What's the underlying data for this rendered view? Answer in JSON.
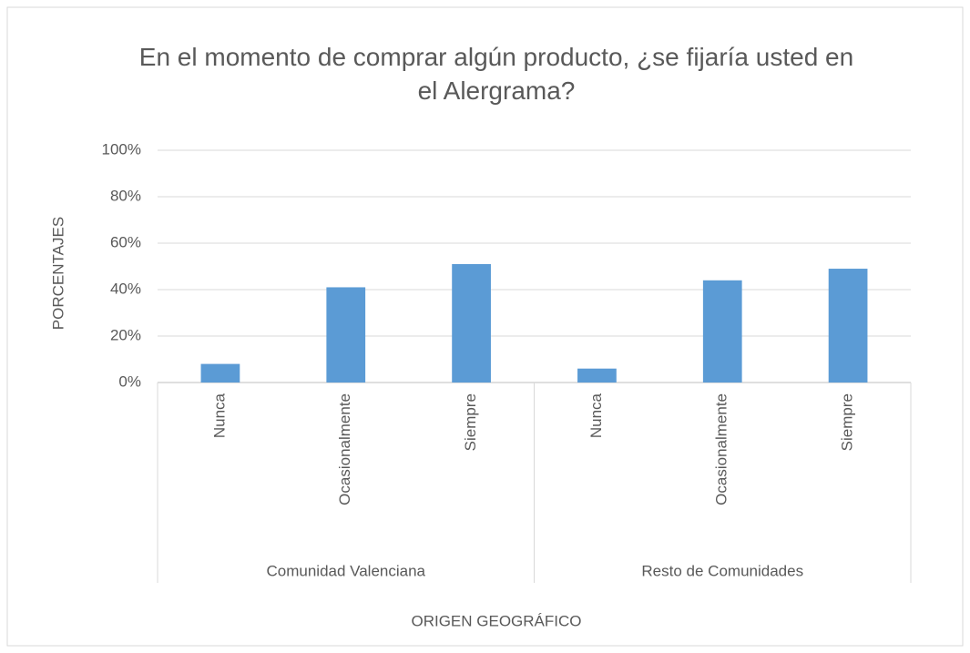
{
  "chart_data": {
    "type": "bar",
    "title": "En el momento de comprar algún producto, ¿se fijaría usted en el Alergrama?",
    "x_label": "ORIGEN GEOGRÁFICO",
    "y_label": "PORCENTAJES",
    "color": "#5b9bd5",
    "groups": [
      {
        "name": "Comunidad Valenciana",
        "categories": [
          "Nunca",
          "Ocasionalmente",
          "Siempre"
        ],
        "values": [
          8,
          41,
          51
        ]
      },
      {
        "name": "Resto de Comunidades",
        "categories": [
          "Nunca",
          "Ocasionalmente",
          "Siempre"
        ],
        "values": [
          6,
          44,
          49
        ]
      }
    ],
    "ylim": [
      0,
      100
    ],
    "yticks": [
      {
        "value": 0,
        "label": "0%"
      },
      {
        "value": 20,
        "label": "20%"
      },
      {
        "value": 40,
        "label": "40%"
      },
      {
        "value": 60,
        "label": "60%"
      },
      {
        "value": 80,
        "label": "80%"
      },
      {
        "value": 100,
        "label": "100%"
      }
    ],
    "grid": true
  }
}
